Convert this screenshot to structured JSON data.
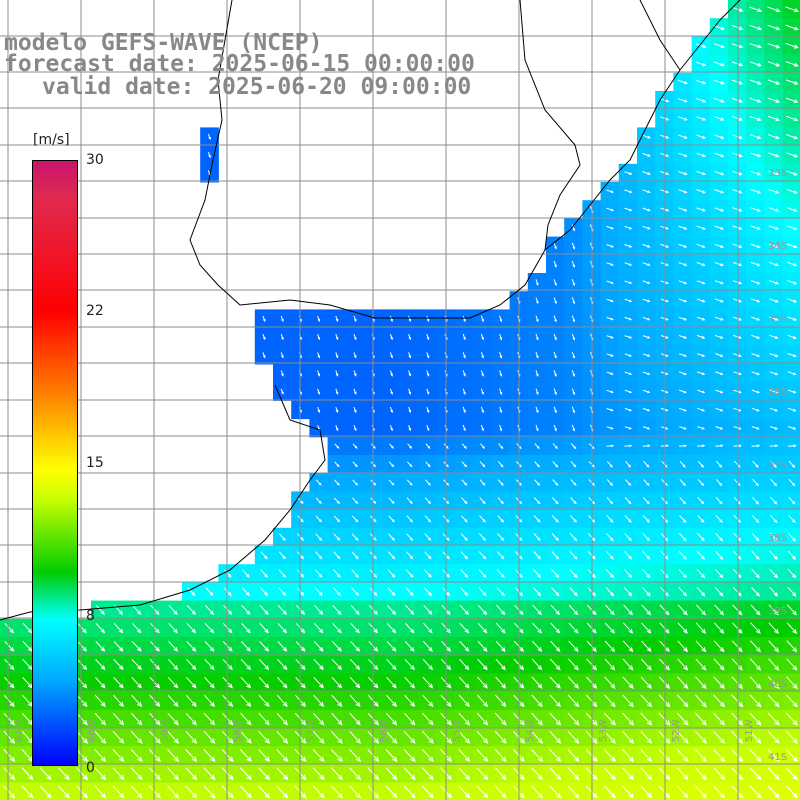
{
  "header": {
    "title_model": "modelo GEFS-WAVE (NCEP)",
    "forecast_date": "forecast date: 2025-06-15 00:00:00",
    "valid_date": "valid date: 2025-06-20 09:00:00"
  },
  "colorbar": {
    "unit": "[m/s]",
    "ticks": [
      "30",
      "22",
      "15",
      "8",
      "0"
    ],
    "tick_values": [
      30,
      22,
      15,
      8,
      0
    ],
    "colors": [
      "#0000ff",
      "#00a8ff",
      "#00ffff",
      "#00cc00",
      "#c8ff00",
      "#ffff00",
      "#ff7a00",
      "#ff0000",
      "#e02a50",
      "#c8146e"
    ]
  },
  "axes": {
    "lon_labels": [
      "61W",
      "60W",
      "59W",
      "58W",
      "57W",
      "56W",
      "55W",
      "54W",
      "53W",
      "52W",
      "51W"
    ],
    "lat_labels": [
      "33S",
      "34S",
      "35S",
      "36S",
      "37S",
      "38S",
      "39S",
      "40S",
      "41S"
    ]
  },
  "field": {
    "variable": "wind speed",
    "min_value": 0,
    "max_value": 30,
    "calm_region_speed_ms": 2,
    "southern_region_speed_ms": 10,
    "eastern_coast_speed_ms": 7
  }
}
